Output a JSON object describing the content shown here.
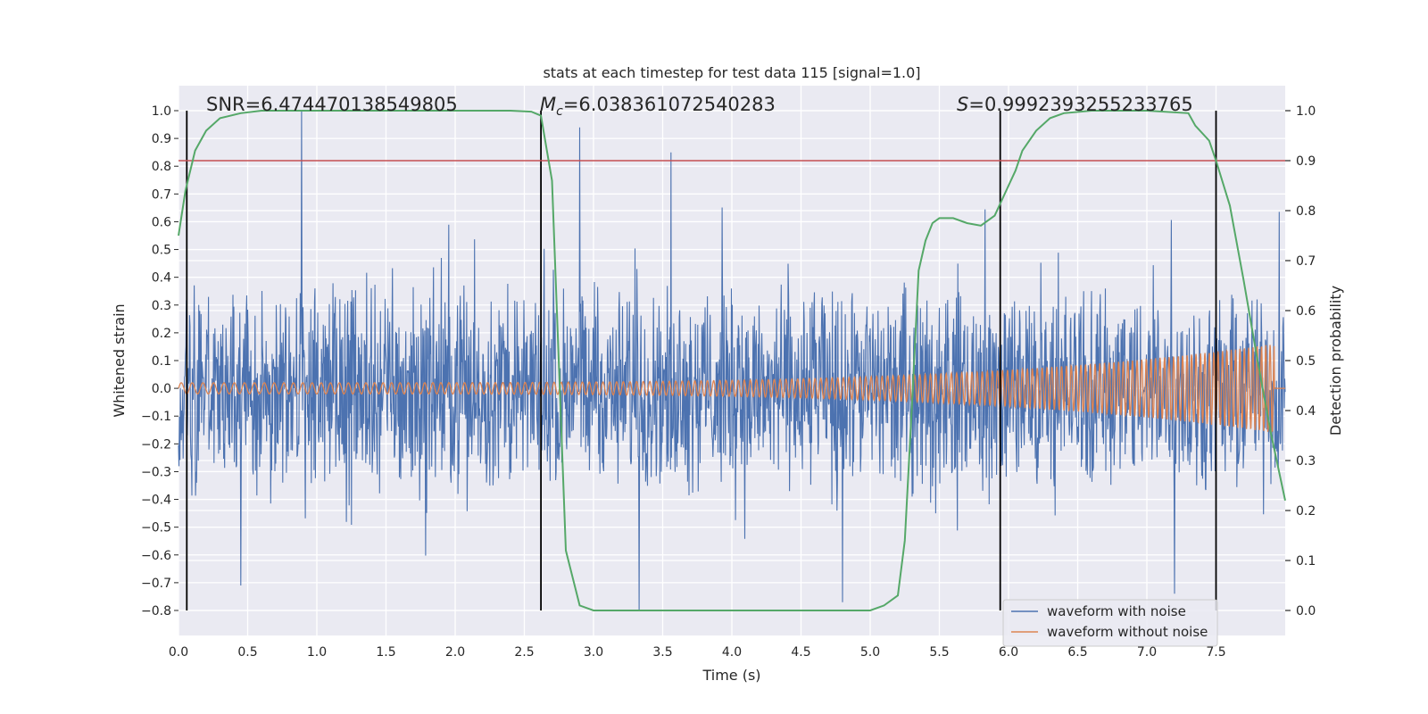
{
  "chart_data": {
    "type": "line",
    "title": "stats at each timestep for test data 115 [signal=1.0]",
    "xlabel": "Time (s)",
    "ylabel": "Whitened strain",
    "y2label": "Detection probability",
    "xlim": [
      0.0,
      8.0
    ],
    "ylim": [
      -0.89,
      1.09
    ],
    "y2lim": [
      -0.05,
      1.05
    ],
    "xticks": [
      "0.0",
      "0.5",
      "1.0",
      "1.5",
      "2.0",
      "2.5",
      "3.0",
      "3.5",
      "4.0",
      "4.5",
      "5.0",
      "5.5",
      "6.0",
      "6.5",
      "7.0",
      "7.5"
    ],
    "yticks": [
      "1.0",
      "0.9",
      "0.8",
      "0.7",
      "0.6",
      "0.5",
      "0.4",
      "0.3",
      "0.2",
      "0.1",
      "0.0",
      "−0.1",
      "−0.2",
      "−0.3",
      "−0.4",
      "−0.5",
      "−0.6",
      "−0.7",
      "−0.8"
    ],
    "y2ticks": [
      "1.0",
      "0.9",
      "0.8",
      "0.7",
      "0.6",
      "0.5",
      "0.4",
      "0.3",
      "0.2",
      "0.1",
      "0.0"
    ],
    "grid": true,
    "legend_placement": "lower-right",
    "annotations": {
      "snr": "SNR=6.474470138549805",
      "mc_symbol": "M",
      "mc_sub": "c",
      "mc_value": "=6.038361072540283",
      "s_symbol": "S",
      "s_value": "=0.9992393255233765"
    },
    "threshold_probability": 0.9,
    "vertical_lines_time": [
      0.06,
      2.62,
      5.94,
      7.5
    ],
    "series": [
      {
        "name": "waveform with noise",
        "color": "#4c72b0",
        "axis": "left",
        "envelope_notes": "noisy strain, typical amplitude about ±0.45, spikes up to 1.0 near t=0.89 and down to −0.8 near t=3.33",
        "spikes": [
          {
            "t": 0.89,
            "v": 1.0
          },
          {
            "t": 2.9,
            "v": 0.94
          },
          {
            "t": 3.56,
            "v": 0.85
          },
          {
            "t": 3.33,
            "v": -0.8
          },
          {
            "t": 4.8,
            "v": -0.77
          },
          {
            "t": 0.45,
            "v": -0.71
          },
          {
            "t": 7.2,
            "v": -0.74
          }
        ]
      },
      {
        "name": "waveform without noise",
        "color": "#dd8452",
        "axis": "left",
        "chirp": {
          "start_amp": 0.02,
          "end_amp": 0.16,
          "end_time": 7.92
        }
      },
      {
        "name": "detection probability",
        "color": "#55a868",
        "axis": "right",
        "x": [
          0.0,
          0.05,
          0.12,
          0.2,
          0.3,
          0.45,
          0.6,
          1.0,
          2.0,
          2.4,
          2.55,
          2.62,
          2.7,
          2.8,
          2.9,
          3.0,
          4.0,
          4.8,
          5.0,
          5.1,
          5.2,
          5.25,
          5.3,
          5.35,
          5.4,
          5.45,
          5.5,
          5.6,
          5.7,
          5.8,
          5.9,
          6.0,
          6.05,
          6.1,
          6.2,
          6.3,
          6.4,
          6.6,
          7.0,
          7.3,
          7.35,
          7.45,
          7.5,
          7.6,
          7.7,
          7.8,
          7.9,
          8.0
        ],
        "values": [
          0.75,
          0.84,
          0.92,
          0.96,
          0.985,
          0.995,
          1.0,
          1.0,
          1.0,
          1.0,
          0.998,
          0.99,
          0.86,
          0.12,
          0.01,
          0.0,
          0.0,
          0.0,
          0.0,
          0.01,
          0.03,
          0.14,
          0.4,
          0.68,
          0.74,
          0.775,
          0.785,
          0.785,
          0.775,
          0.77,
          0.79,
          0.85,
          0.88,
          0.92,
          0.96,
          0.985,
          0.995,
          1.0,
          1.0,
          0.995,
          0.97,
          0.94,
          0.9,
          0.81,
          0.66,
          0.5,
          0.35,
          0.22
        ]
      }
    ],
    "colors": {
      "plot_background": "#eaeaf2",
      "grid": "#ffffff",
      "threshold": "#c44e52",
      "vertical_line": "#000000"
    }
  }
}
